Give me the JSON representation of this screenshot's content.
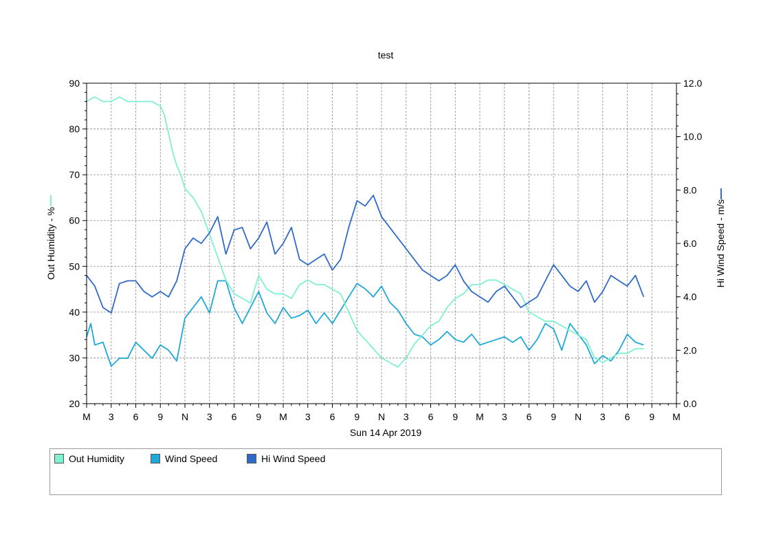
{
  "chart_data": {
    "type": "line",
    "title": "test",
    "xlabel": "Sun 14 Apr 2019",
    "x_tick_labels": [
      "M",
      "3",
      "6",
      "9",
      "N",
      "3",
      "6",
      "9",
      "M",
      "3",
      "6",
      "9",
      "N",
      "3",
      "6",
      "9",
      "M",
      "3",
      "6",
      "9",
      "N",
      "3",
      "6",
      "9",
      "M"
    ],
    "x_range_hours": [
      0,
      72
    ],
    "y_left": {
      "label": "Out Humidity - %",
      "range": [
        20,
        90
      ],
      "ticks": [
        "20",
        "30",
        "40",
        "50",
        "60",
        "70",
        "80",
        "90"
      ]
    },
    "y_right": {
      "label": "Hi Wind Speed - m/s",
      "range": [
        0,
        12
      ],
      "ticks": [
        "0.0",
        "2.0",
        "4.0",
        "6.0",
        "8.0",
        "10.0",
        "12.0"
      ]
    },
    "grid": true,
    "legend_position": "bottom",
    "series": [
      {
        "name": "Out Humidity",
        "axis": "left",
        "color": "#7ff0d0",
        "points": [
          [
            0,
            86
          ],
          [
            1,
            87
          ],
          [
            2,
            86
          ],
          [
            3,
            86
          ],
          [
            4,
            87
          ],
          [
            5,
            86
          ],
          [
            6,
            86
          ],
          [
            7,
            86
          ],
          [
            8,
            86
          ],
          [
            9,
            85
          ],
          [
            9.5,
            83
          ],
          [
            10,
            79
          ],
          [
            10.5,
            75
          ],
          [
            11,
            72
          ],
          [
            11.5,
            70
          ],
          [
            12,
            67
          ],
          [
            12.5,
            66
          ],
          [
            13,
            65
          ],
          [
            14,
            62
          ],
          [
            15,
            57
          ],
          [
            16,
            52
          ],
          [
            17,
            47
          ],
          [
            18,
            44
          ],
          [
            19,
            43
          ],
          [
            20,
            42
          ],
          [
            21,
            48
          ],
          [
            22,
            45
          ],
          [
            23,
            44
          ],
          [
            24,
            44
          ],
          [
            25,
            43
          ],
          [
            26,
            46
          ],
          [
            27,
            47
          ],
          [
            28,
            46
          ],
          [
            29,
            46
          ],
          [
            30,
            45
          ],
          [
            31,
            44
          ],
          [
            32,
            40
          ],
          [
            33,
            36
          ],
          [
            34,
            34
          ],
          [
            35,
            32
          ],
          [
            36,
            30
          ],
          [
            37,
            29
          ],
          [
            38,
            28
          ],
          [
            39,
            30
          ],
          [
            40,
            33
          ],
          [
            41,
            35
          ],
          [
            42,
            37
          ],
          [
            43,
            38
          ],
          [
            44,
            41
          ],
          [
            45,
            43
          ],
          [
            46,
            44
          ],
          [
            47,
            46
          ],
          [
            48,
            46
          ],
          [
            49,
            47
          ],
          [
            50,
            47
          ],
          [
            51,
            46
          ],
          [
            52,
            45
          ],
          [
            53,
            44
          ],
          [
            54,
            40
          ],
          [
            55,
            39
          ],
          [
            56,
            38
          ],
          [
            57,
            38
          ],
          [
            58,
            37
          ],
          [
            59,
            36
          ],
          [
            60,
            35
          ],
          [
            61,
            34
          ],
          [
            62,
            30
          ],
          [
            63,
            29
          ],
          [
            64,
            30
          ],
          [
            65,
            31
          ],
          [
            66,
            31
          ],
          [
            67,
            32
          ],
          [
            68,
            32
          ]
        ]
      },
      {
        "name": "Wind Speed",
        "axis": "right",
        "color": "#1ea8d8",
        "points": [
          [
            0,
            2.5
          ],
          [
            0.5,
            3.0
          ],
          [
            1,
            2.2
          ],
          [
            2,
            2.3
          ],
          [
            3,
            1.4
          ],
          [
            4,
            1.7
          ],
          [
            5,
            1.7
          ],
          [
            6,
            2.3
          ],
          [
            7,
            2.0
          ],
          [
            8,
            1.7
          ],
          [
            9,
            2.2
          ],
          [
            10,
            2.0
          ],
          [
            11,
            1.6
          ],
          [
            12,
            3.2
          ],
          [
            13,
            3.6
          ],
          [
            14,
            4.0
          ],
          [
            15,
            3.4
          ],
          [
            16,
            4.6
          ],
          [
            17,
            4.6
          ],
          [
            18,
            3.6
          ],
          [
            19,
            3.0
          ],
          [
            20,
            3.6
          ],
          [
            21,
            4.2
          ],
          [
            22,
            3.4
          ],
          [
            23,
            3.0
          ],
          [
            24,
            3.6
          ],
          [
            25,
            3.2
          ],
          [
            26,
            3.3
          ],
          [
            27,
            3.5
          ],
          [
            28,
            3.0
          ],
          [
            29,
            3.4
          ],
          [
            30,
            3.0
          ],
          [
            31,
            3.5
          ],
          [
            32,
            4.0
          ],
          [
            33,
            4.5
          ],
          [
            34,
            4.3
          ],
          [
            35,
            4.0
          ],
          [
            36,
            4.4
          ],
          [
            37,
            3.8
          ],
          [
            38,
            3.5
          ],
          [
            39,
            3.0
          ],
          [
            40,
            2.6
          ],
          [
            41,
            2.5
          ],
          [
            42,
            2.2
          ],
          [
            43,
            2.4
          ],
          [
            44,
            2.7
          ],
          [
            45,
            2.4
          ],
          [
            46,
            2.3
          ],
          [
            47,
            2.6
          ],
          [
            48,
            2.2
          ],
          [
            49,
            2.3
          ],
          [
            50,
            2.4
          ],
          [
            51,
            2.5
          ],
          [
            52,
            2.3
          ],
          [
            53,
            2.5
          ],
          [
            54,
            2.0
          ],
          [
            55,
            2.4
          ],
          [
            56,
            3.0
          ],
          [
            57,
            2.8
          ],
          [
            58,
            2.0
          ],
          [
            59,
            3.0
          ],
          [
            60,
            2.6
          ],
          [
            61,
            2.2
          ],
          [
            62,
            1.5
          ],
          [
            63,
            1.8
          ],
          [
            64,
            1.6
          ],
          [
            65,
            2.0
          ],
          [
            66,
            2.6
          ],
          [
            67,
            2.3
          ],
          [
            68,
            2.2
          ]
        ]
      },
      {
        "name": "Hi Wind Speed",
        "axis": "right",
        "color": "#2f6ac8",
        "points": [
          [
            0,
            4.8
          ],
          [
            1,
            4.4
          ],
          [
            2,
            3.6
          ],
          [
            3,
            3.4
          ],
          [
            4,
            4.5
          ],
          [
            5,
            4.6
          ],
          [
            6,
            4.6
          ],
          [
            7,
            4.2
          ],
          [
            8,
            4.0
          ],
          [
            9,
            4.2
          ],
          [
            10,
            4.0
          ],
          [
            11,
            4.6
          ],
          [
            12,
            5.8
          ],
          [
            13,
            6.2
          ],
          [
            14,
            6.0
          ],
          [
            15,
            6.4
          ],
          [
            16,
            7.0
          ],
          [
            17,
            5.6
          ],
          [
            18,
            6.5
          ],
          [
            19,
            6.6
          ],
          [
            20,
            5.8
          ],
          [
            21,
            6.2
          ],
          [
            22,
            6.8
          ],
          [
            23,
            5.6
          ],
          [
            24,
            6.0
          ],
          [
            25,
            6.6
          ],
          [
            26,
            5.4
          ],
          [
            27,
            5.2
          ],
          [
            28,
            5.4
          ],
          [
            29,
            5.6
          ],
          [
            30,
            5.0
          ],
          [
            31,
            5.4
          ],
          [
            32,
            6.6
          ],
          [
            33,
            7.6
          ],
          [
            34,
            7.4
          ],
          [
            35,
            7.8
          ],
          [
            36,
            7.0
          ],
          [
            37,
            6.6
          ],
          [
            38,
            6.2
          ],
          [
            39,
            5.8
          ],
          [
            40,
            5.4
          ],
          [
            41,
            5.0
          ],
          [
            42,
            4.8
          ],
          [
            43,
            4.6
          ],
          [
            44,
            4.8
          ],
          [
            45,
            5.2
          ],
          [
            46,
            4.6
          ],
          [
            47,
            4.2
          ],
          [
            48,
            4.0
          ],
          [
            49,
            3.8
          ],
          [
            50,
            4.2
          ],
          [
            51,
            4.4
          ],
          [
            52,
            4.0
          ],
          [
            53,
            3.6
          ],
          [
            54,
            3.8
          ],
          [
            55,
            4.0
          ],
          [
            56,
            4.6
          ],
          [
            57,
            5.2
          ],
          [
            58,
            4.8
          ],
          [
            59,
            4.4
          ],
          [
            60,
            4.2
          ],
          [
            61,
            4.6
          ],
          [
            62,
            3.8
          ],
          [
            63,
            4.2
          ],
          [
            64,
            4.8
          ],
          [
            65,
            4.6
          ],
          [
            66,
            4.4
          ],
          [
            67,
            4.8
          ],
          [
            68,
            4.0
          ]
        ]
      }
    ]
  }
}
